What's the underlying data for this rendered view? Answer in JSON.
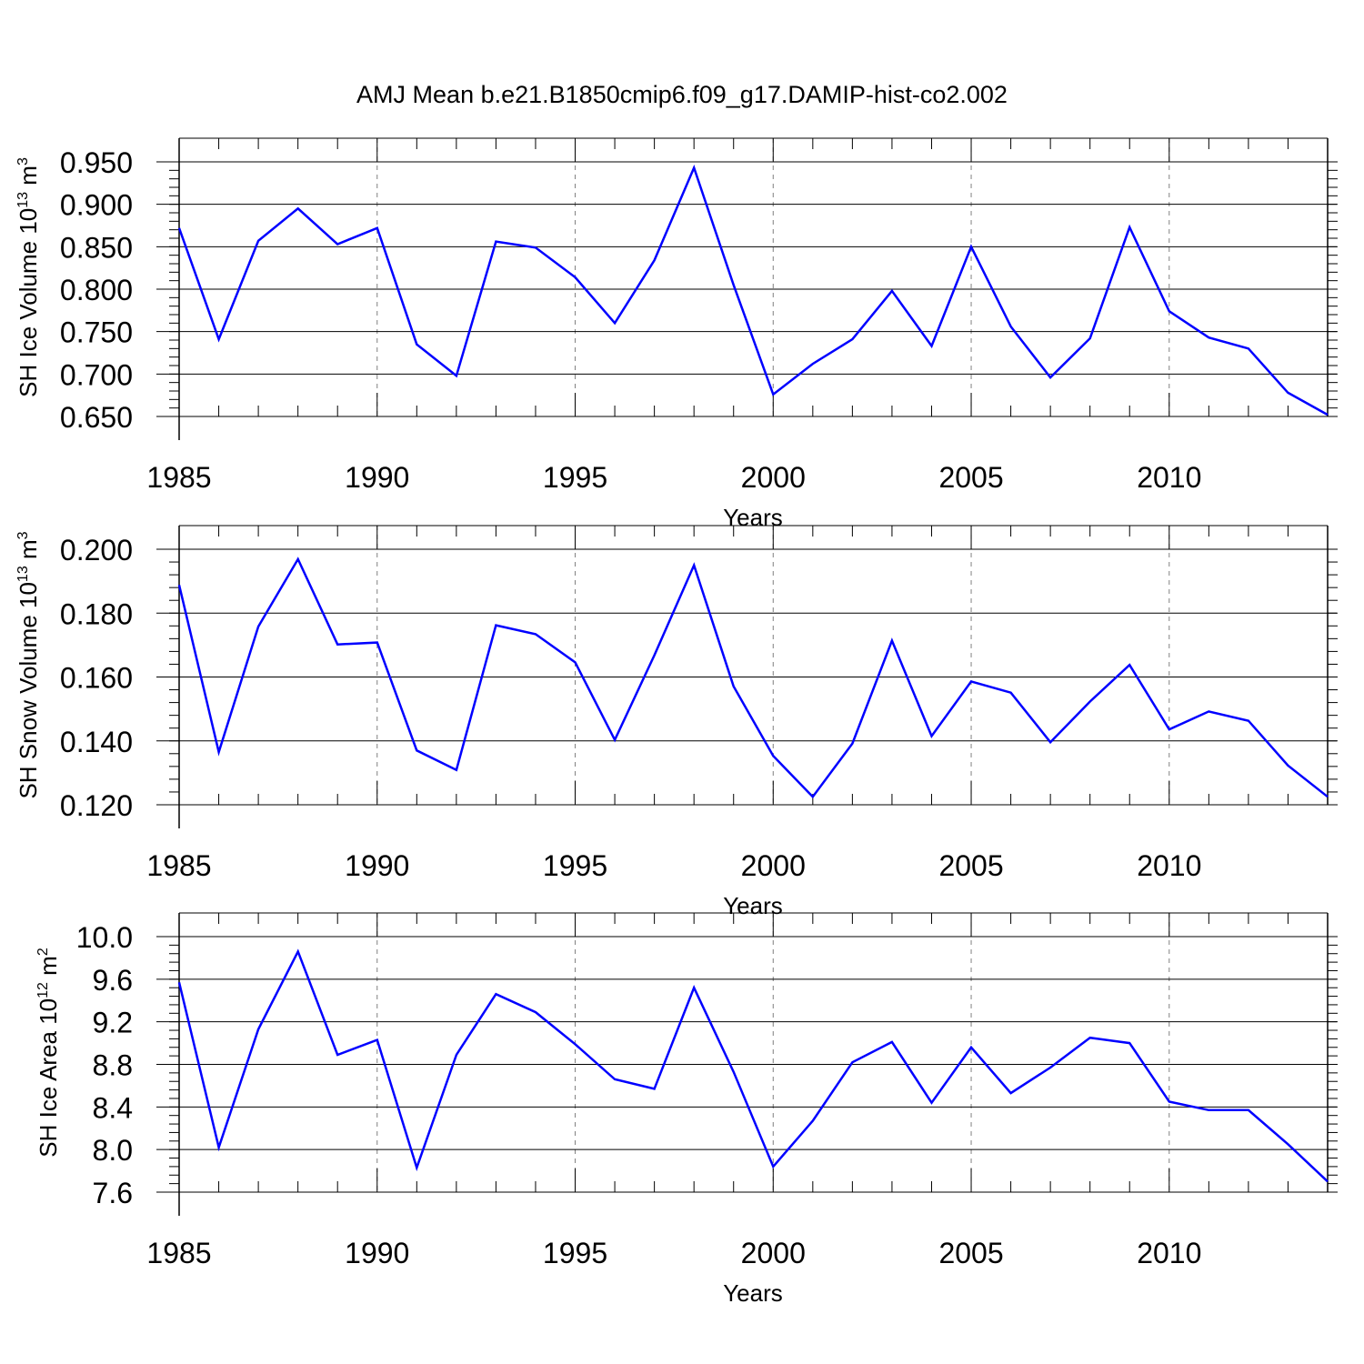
{
  "figure": {
    "title": "AMJ Mean b.e21.B1850cmip6.f09_g17.DAMIP-hist-co2.002",
    "line_color": "#0000ff",
    "grid_color": "#808080"
  },
  "chart_data": [
    {
      "type": "line",
      "xlabel": "Years",
      "ylabel": {
        "base": "SH Ice Volume 10",
        "exp": "13",
        "unit": " m",
        "unit_exp": "3"
      },
      "xlim": [
        1985,
        2014
      ],
      "ylim": [
        0.65,
        0.95
      ],
      "x_ticks": [
        "1985",
        "1990",
        "1995",
        "2000",
        "2005",
        "2010"
      ],
      "y_ticks": [
        "0.650",
        "0.700",
        "0.750",
        "0.800",
        "0.850",
        "0.900",
        "0.950"
      ],
      "grid": "vertical dashed at labeled years",
      "x": [
        1985,
        1986,
        1987,
        1988,
        1989,
        1990,
        1991,
        1992,
        1993,
        1994,
        1995,
        1996,
        1997,
        1998,
        1999,
        2000,
        2001,
        2002,
        2003,
        2004,
        2005,
        2006,
        2007,
        2008,
        2009,
        2010,
        2011,
        2012,
        2013,
        2014
      ],
      "values": [
        0.872,
        0.741,
        0.857,
        0.895,
        0.853,
        0.872,
        0.735,
        0.698,
        0.856,
        0.849,
        0.814,
        0.76,
        0.834,
        0.943,
        0.805,
        0.676,
        0.712,
        0.741,
        0.798,
        0.733,
        0.85,
        0.756,
        0.696,
        0.742,
        0.873,
        0.774,
        0.743,
        0.73,
        0.678,
        0.652
      ]
    },
    {
      "type": "line",
      "xlabel": "Years",
      "ylabel": {
        "base": "SH Snow Volume 10",
        "exp": "13",
        "unit": " m",
        "unit_exp": "3"
      },
      "xlim": [
        1985,
        2014
      ],
      "ylim": [
        0.12,
        0.2
      ],
      "x_ticks": [
        "1985",
        "1990",
        "1995",
        "2000",
        "2005",
        "2010"
      ],
      "y_ticks": [
        "0.120",
        "0.140",
        "0.160",
        "0.180",
        "0.200"
      ],
      "grid": "vertical dashed at labeled years",
      "x": [
        1985,
        1986,
        1987,
        1988,
        1989,
        1990,
        1991,
        1992,
        1993,
        1994,
        1995,
        1996,
        1997,
        1998,
        1999,
        2000,
        2001,
        2002,
        2003,
        2004,
        2005,
        2006,
        2007,
        2008,
        2009,
        2010,
        2011,
        2012,
        2013,
        2014
      ],
      "values": [
        0.1888,
        0.1365,
        0.1758,
        0.1969,
        0.1702,
        0.1708,
        0.137,
        0.1309,
        0.1762,
        0.1734,
        0.1646,
        0.1403,
        0.1668,
        0.195,
        0.1571,
        0.1353,
        0.1225,
        0.1392,
        0.1714,
        0.1415,
        0.1586,
        0.1551,
        0.1396,
        0.1523,
        0.1638,
        0.1436,
        0.1492,
        0.1463,
        0.1323,
        0.1225
      ]
    },
    {
      "type": "line",
      "xlabel": "Years",
      "ylabel": {
        "base": "SH Ice Area 10",
        "exp": "12",
        "unit": " m",
        "unit_exp": "2"
      },
      "xlim": [
        1985,
        2014
      ],
      "ylim": [
        7.6,
        10.0
      ],
      "x_ticks": [
        "1985",
        "1990",
        "1995",
        "2000",
        "2005",
        "2010"
      ],
      "y_ticks": [
        "7.6",
        "8.0",
        "8.4",
        "8.8",
        "9.2",
        "9.6",
        "10.0"
      ],
      "grid": "vertical dashed at labeled years",
      "x": [
        1985,
        1986,
        1987,
        1988,
        1989,
        1990,
        1991,
        1992,
        1993,
        1994,
        1995,
        1996,
        1997,
        1998,
        1999,
        2000,
        2001,
        2002,
        2003,
        2004,
        2005,
        2006,
        2007,
        2008,
        2009,
        2010,
        2011,
        2012,
        2013,
        2014
      ],
      "values": [
        9.57,
        8.02,
        9.13,
        9.86,
        8.89,
        9.03,
        7.83,
        8.89,
        9.46,
        9.29,
        8.99,
        8.66,
        8.57,
        9.52,
        8.73,
        7.84,
        8.27,
        8.82,
        9.01,
        8.44,
        8.96,
        8.53,
        8.77,
        9.05,
        9.0,
        8.45,
        8.37,
        8.37,
        8.05,
        7.7
      ]
    }
  ]
}
